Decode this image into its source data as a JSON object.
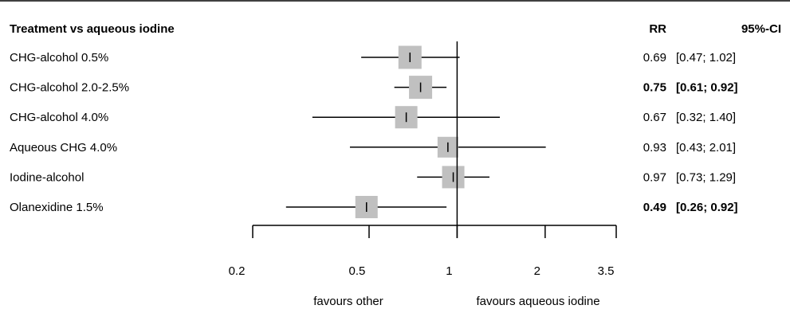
{
  "chart_data": {
    "type": "forest",
    "x_scale": "log",
    "reference_value": 1,
    "header": {
      "label_column": "Treatment vs aqueous iodine",
      "rr_column": "RR",
      "ci_column": "95%-CI"
    },
    "xticks": [
      0.2,
      0.5,
      1,
      2,
      3.5
    ],
    "xtick_labels": [
      "0.2",
      "0.5",
      "1",
      "2",
      "3.5"
    ],
    "xlim": [
      0.2,
      3.5
    ],
    "favours_left": "favours other",
    "favours_right": "favours aqueous iodine",
    "rows": [
      {
        "label": "CHG-alcohol 0.5%",
        "rr": 0.69,
        "lower": 0.47,
        "upper": 1.02,
        "rr_text": "0.69",
        "ci_text": "[0.47; 1.02]",
        "significant": false,
        "weight": 1.0
      },
      {
        "label": "CHG-alcohol 2.0-2.5%",
        "rr": 0.75,
        "lower": 0.61,
        "upper": 0.92,
        "rr_text": "0.75",
        "ci_text": "[0.61; 0.92]",
        "significant": true,
        "weight": 1.0
      },
      {
        "label": "CHG-alcohol 4.0%",
        "rr": 0.67,
        "lower": 0.32,
        "upper": 1.4,
        "rr_text": "0.67",
        "ci_text": "[0.32; 1.40]",
        "significant": false,
        "weight": 0.95
      },
      {
        "label": "Aqueous CHG  4.0%",
        "rr": 0.93,
        "lower": 0.43,
        "upper": 2.01,
        "rr_text": "0.93",
        "ci_text": "[0.43; 2.01]",
        "significant": false,
        "weight": 0.9
      },
      {
        "label": "Iodine-alcohol",
        "rr": 0.97,
        "lower": 0.73,
        "upper": 1.29,
        "rr_text": "0.97",
        "ci_text": "[0.73; 1.29]",
        "significant": false,
        "weight": 0.95
      },
      {
        "label": "Olanexidine 1.5%",
        "rr": 0.49,
        "lower": 0.26,
        "upper": 0.92,
        "rr_text": "0.49",
        "ci_text": "[0.26; 0.92]",
        "significant": true,
        "weight": 0.95
      }
    ],
    "colors": {
      "box": "#c0c0c0",
      "line": "#000000",
      "text": "#000000"
    }
  }
}
